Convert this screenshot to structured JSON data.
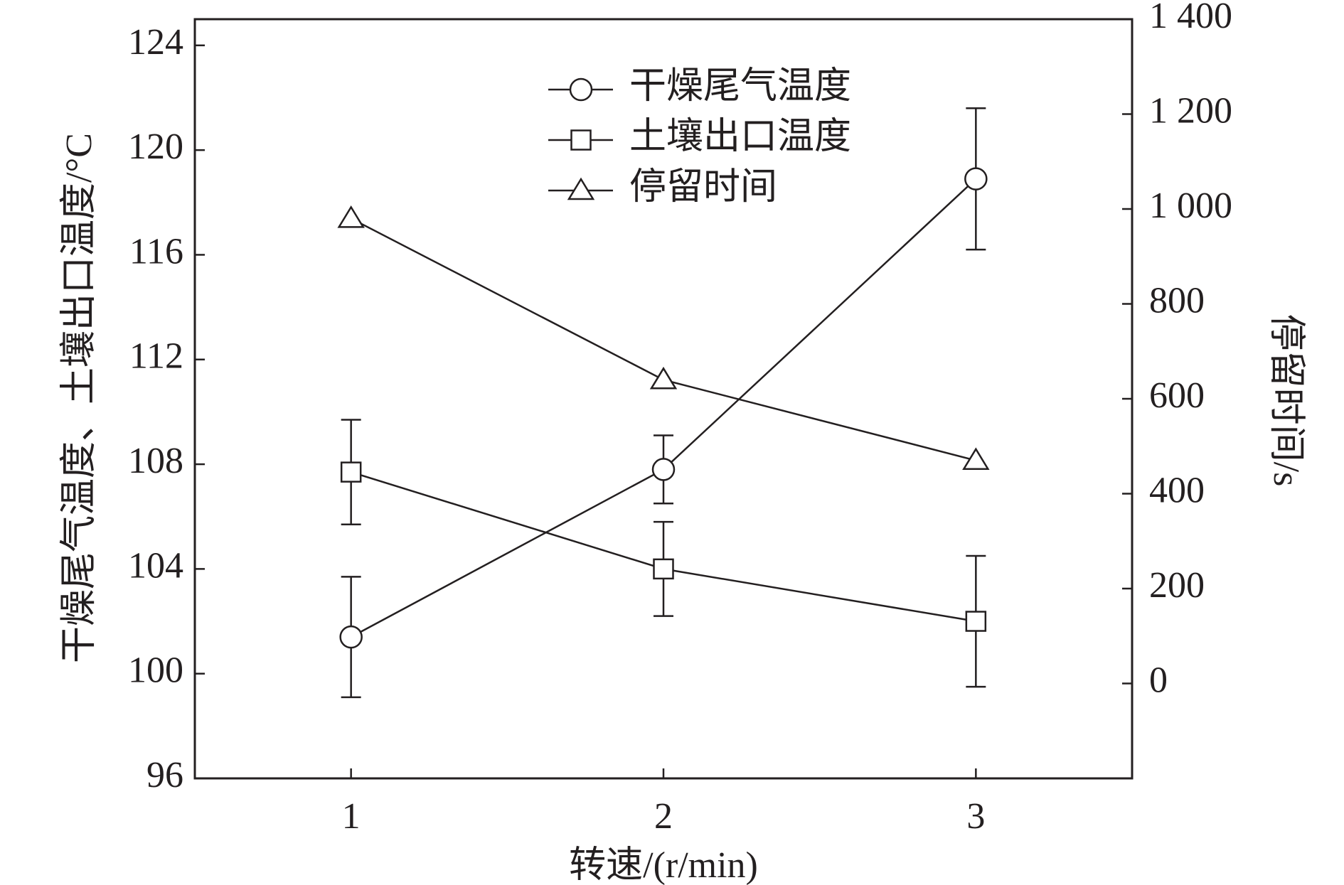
{
  "chart_data": {
    "type": "line",
    "x_label": "转速/(r/min)",
    "y_label": "干燥尾气温度、土壤出口温度/°C",
    "y2_label": "停留时间/s",
    "x": [
      1,
      2,
      3
    ],
    "xlim": [
      0.5,
      3.5
    ],
    "xticks": [
      1,
      2,
      3
    ],
    "ylim": [
      96,
      125
    ],
    "yticks": [
      96,
      100,
      104,
      108,
      112,
      116,
      120,
      124
    ],
    "y2lim": [
      -200,
      1400
    ],
    "y2ticks": [
      0,
      200,
      400,
      600,
      800,
      {
        "value": 1000,
        "label": "1 000"
      },
      {
        "value": 1200,
        "label": "1 200"
      },
      {
        "value": 1400,
        "label": "1 400"
      }
    ],
    "grid": false,
    "series": [
      {
        "name": "干燥尾气温度",
        "color": "#231f20",
        "marker": "circle",
        "values": [
          101.4,
          107.8,
          118.9
        ],
        "errors": [
          2.3,
          1.3,
          2.7
        ]
      },
      {
        "name": "土壤出口温度",
        "color": "#231f20",
        "marker": "square",
        "values": [
          107.7,
          104.0,
          102.0
        ],
        "errors": [
          2.0,
          1.8,
          2.5
        ]
      },
      {
        "name": "停留时间",
        "color": "#231f20",
        "marker": "triangle",
        "axis": "y2",
        "values": [
          980,
          640,
          470
        ]
      }
    ]
  }
}
